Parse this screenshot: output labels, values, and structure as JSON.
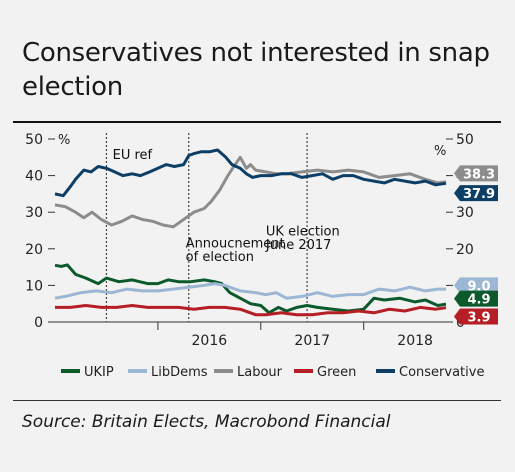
{
  "title": "Conservatives not interested in snap election",
  "source": "Source: Britain Elects, Macrobond Financial",
  "chart_data": {
    "type": "line",
    "title": "Conservatives not interested in snap election",
    "ylabel_left": "%",
    "ylabel_right": "%",
    "ylim": [
      0,
      50
    ],
    "yticks": [
      0,
      10,
      20,
      30,
      40,
      50
    ],
    "year_labels": [
      {
        "label": "2016",
        "x": 2016.0
      },
      {
        "label": "2017",
        "x": 2017.0
      },
      {
        "label": "2018",
        "x": 2018.0
      }
    ],
    "annotations": [
      {
        "text": "EU ref",
        "x": 2015.56,
        "y": 44.5
      },
      {
        "text": "Annoucnement",
        "x": 2016.27,
        "y": 20.3
      },
      {
        "text": "of election",
        "x": 2016.27,
        "y": 16.6
      },
      {
        "text": "UK election",
        "x": 2017.05,
        "y": 23.6
      },
      {
        "text": "June 2017",
        "x": 2017.05,
        "y": 19.9
      }
    ],
    "vlines": [
      2015.5,
      2016.3,
      2017.45
    ],
    "end_labels": [
      {
        "series": "Labour",
        "text": "38.3",
        "color": "#8c8c8c",
        "value": 38.3
      },
      {
        "series": "Conservative",
        "text": "37.9",
        "color": "#0d3e66",
        "value": 37.9
      },
      {
        "series": "LibDems",
        "text": "9.0",
        "color": "#9bb7d3",
        "value": 9.0
      },
      {
        "series": "UKIP",
        "text": "4.9",
        "color": "#0c5a2c",
        "value": 4.9
      },
      {
        "series": "Green",
        "text": "3.9",
        "color": "#b51e24",
        "value": 3.9
      }
    ],
    "series": [
      {
        "name": "UKIP",
        "color": "#0c5a2c",
        "x": [
          2015.0,
          2015.06,
          2015.12,
          2015.2,
          2015.3,
          2015.42,
          2015.5,
          2015.62,
          2015.75,
          2015.9,
          2016.0,
          2016.1,
          2016.2,
          2016.32,
          2016.45,
          2016.55,
          2016.62,
          2016.7,
          2016.8,
          2016.9,
          2017.0,
          2017.08,
          2017.17,
          2017.25,
          2017.35,
          2017.45,
          2017.55,
          2017.7,
          2017.85,
          2018.0,
          2018.1,
          2018.2,
          2018.35,
          2018.5,
          2018.6,
          2018.72,
          2018.8
        ],
        "y": [
          15.5,
          15.2,
          15.6,
          13.0,
          12.0,
          10.5,
          12.0,
          11.0,
          11.5,
          10.5,
          10.5,
          11.5,
          11.0,
          11.0,
          11.5,
          11.0,
          10.5,
          8.0,
          6.5,
          5.0,
          4.5,
          2.5,
          4.0,
          3.0,
          4.0,
          4.5,
          4.0,
          3.5,
          3.0,
          3.5,
          6.5,
          6.0,
          6.5,
          5.5,
          6.0,
          4.5,
          4.9
        ]
      },
      {
        "name": "LibDems",
        "color": "#9bb7d3",
        "x": [
          2015.0,
          2015.1,
          2015.25,
          2015.4,
          2015.55,
          2015.7,
          2015.85,
          2016.0,
          2016.15,
          2016.3,
          2016.45,
          2016.55,
          2016.65,
          2016.8,
          2016.95,
          2017.05,
          2017.15,
          2017.25,
          2017.4,
          2017.55,
          2017.7,
          2017.85,
          2018.0,
          2018.15,
          2018.3,
          2018.45,
          2018.6,
          2018.72,
          2018.8
        ],
        "y": [
          6.5,
          7.0,
          8.0,
          8.5,
          8.0,
          9.0,
          8.5,
          8.5,
          9.0,
          9.5,
          10.0,
          10.5,
          10.0,
          8.5,
          8.0,
          7.5,
          8.0,
          6.5,
          7.0,
          8.0,
          7.0,
          7.5,
          7.5,
          9.0,
          8.5,
          9.5,
          8.5,
          9.0,
          9.0
        ]
      },
      {
        "name": "Labour",
        "color": "#8c8c8c",
        "x": [
          2015.0,
          2015.1,
          2015.2,
          2015.28,
          2015.36,
          2015.45,
          2015.55,
          2015.65,
          2015.75,
          2015.85,
          2015.95,
          2016.05,
          2016.15,
          2016.25,
          2016.35,
          2016.45,
          2016.52,
          2016.6,
          2016.68,
          2016.75,
          2016.8,
          2016.86,
          2016.9,
          2016.95,
          2017.05,
          2017.15,
          2017.25,
          2017.4,
          2017.55,
          2017.7,
          2017.85,
          2018.0,
          2018.15,
          2018.3,
          2018.45,
          2018.6,
          2018.72,
          2018.8
        ],
        "y": [
          32.0,
          31.5,
          30.0,
          28.5,
          30.0,
          28.0,
          26.5,
          27.5,
          29.0,
          28.0,
          27.5,
          26.5,
          26.0,
          28.0,
          30.0,
          31.0,
          33.0,
          36.0,
          40.0,
          43.0,
          45.0,
          42.0,
          43.0,
          41.5,
          41.0,
          40.5,
          40.5,
          41.0,
          41.5,
          41.0,
          41.5,
          41.0,
          39.5,
          40.0,
          40.5,
          39.0,
          38.0,
          38.3
        ]
      },
      {
        "name": "Green",
        "color": "#b51e24",
        "x": [
          2015.0,
          2015.15,
          2015.3,
          2015.45,
          2015.6,
          2015.75,
          2015.9,
          2016.05,
          2016.2,
          2016.35,
          2016.5,
          2016.65,
          2016.8,
          2016.95,
          2017.05,
          2017.2,
          2017.35,
          2017.5,
          2017.65,
          2017.8,
          2017.95,
          2018.1,
          2018.25,
          2018.4,
          2018.55,
          2018.7,
          2018.8
        ],
        "y": [
          4.0,
          4.0,
          4.5,
          4.0,
          4.0,
          4.5,
          4.0,
          4.0,
          4.0,
          3.5,
          4.0,
          4.0,
          3.5,
          2.0,
          2.0,
          2.5,
          2.0,
          2.0,
          2.5,
          2.5,
          3.0,
          2.5,
          3.5,
          3.0,
          4.0,
          3.5,
          3.9
        ]
      },
      {
        "name": "Conservative",
        "color": "#0d3e66",
        "x": [
          2015.0,
          2015.08,
          2015.15,
          2015.2,
          2015.28,
          2015.35,
          2015.42,
          2015.5,
          2015.58,
          2015.66,
          2015.75,
          2015.83,
          2015.92,
          2016.0,
          2016.08,
          2016.16,
          2016.25,
          2016.3,
          2016.35,
          2016.42,
          2016.5,
          2016.58,
          2016.66,
          2016.72,
          2016.8,
          2016.86,
          2016.92,
          2017.0,
          2017.1,
          2017.2,
          2017.3,
          2017.4,
          2017.5,
          2017.6,
          2017.7,
          2017.8,
          2017.9,
          2018.0,
          2018.1,
          2018.2,
          2018.3,
          2018.4,
          2018.5,
          2018.6,
          2018.7,
          2018.8
        ],
        "y": [
          35.0,
          34.5,
          37.0,
          39.0,
          41.5,
          41.0,
          42.5,
          42.0,
          41.0,
          40.0,
          40.5,
          40.0,
          41.0,
          42.0,
          43.0,
          42.5,
          43.0,
          45.5,
          46.0,
          46.5,
          46.5,
          47.0,
          45.0,
          43.0,
          42.0,
          40.5,
          39.5,
          40.0,
          40.0,
          40.5,
          40.5,
          39.5,
          40.0,
          40.5,
          39.0,
          40.0,
          40.0,
          39.0,
          38.5,
          38.0,
          39.0,
          38.5,
          38.0,
          38.5,
          37.5,
          37.9
        ]
      }
    ],
    "legend_placement": "bottom",
    "grid": false
  }
}
